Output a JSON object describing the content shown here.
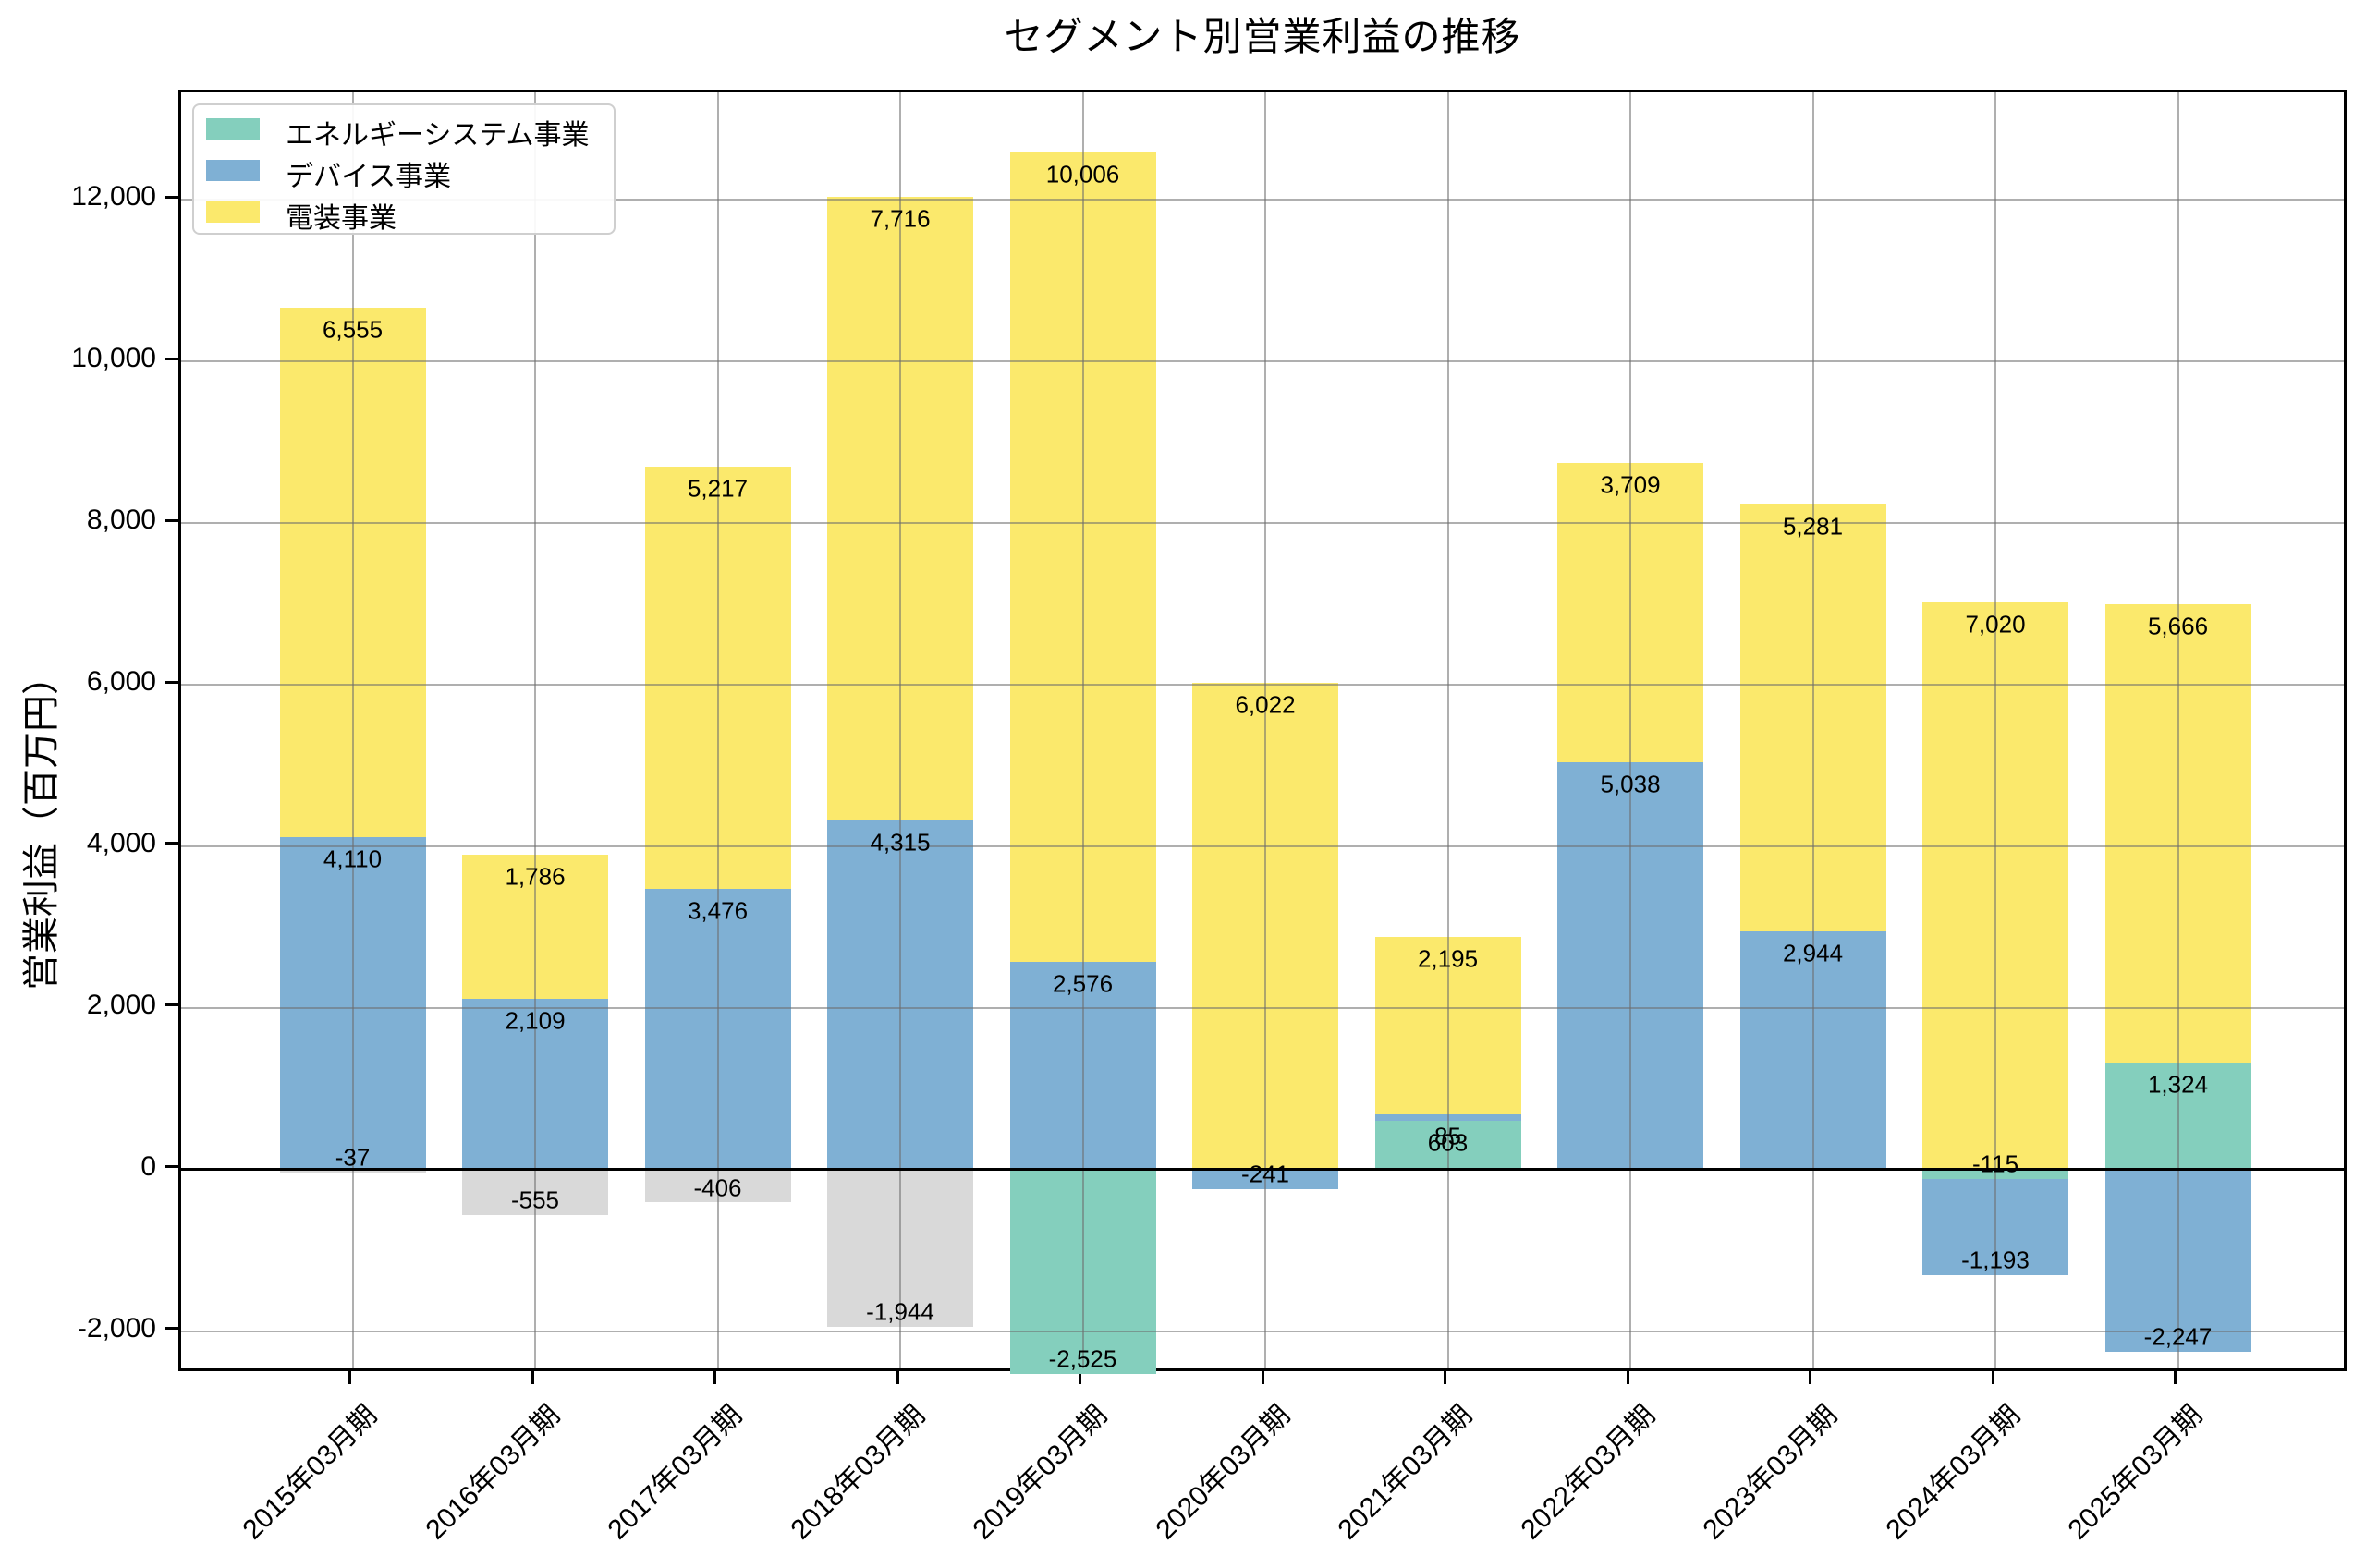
{
  "chart_data": {
    "type": "bar",
    "stacked": true,
    "title": "セグメント別営業利益の推移",
    "xlabel": "",
    "ylabel": "営業利益（百万円）",
    "categories": [
      "2015年03月期",
      "2016年03月期",
      "2017年03月期",
      "2018年03月期",
      "2019年03月期",
      "2020年03月期",
      "2021年03月期",
      "2022年03月期",
      "2023年03月期",
      "2024年03月期",
      "2025年03月期"
    ],
    "series": [
      {
        "name": "エネルギーシステム事業",
        "color": "#84cfbd",
        "in_legend": true,
        "values": [
          null,
          null,
          null,
          null,
          -2525,
          null,
          603,
          null,
          null,
          -115,
          1324
        ]
      },
      {
        "name": "デバイス事業",
        "color": "#7fb0d4",
        "in_legend": true,
        "values": [
          4110,
          2109,
          3476,
          4315,
          2576,
          -241,
          85,
          5038,
          2944,
          -1193,
          -2247
        ]
      },
      {
        "name": "電装事業",
        "color": "#fbe96c",
        "in_legend": true,
        "values": [
          6555,
          1786,
          5217,
          7716,
          10006,
          6022,
          2195,
          3709,
          5281,
          7020,
          5666
        ]
      },
      {
        "name": "",
        "color": "#d9d9d9",
        "in_legend": false,
        "values": [
          -37,
          -555,
          -406,
          -1944,
          null,
          null,
          null,
          null,
          null,
          null,
          null
        ]
      }
    ],
    "y_ticks": [
      -2000,
      0,
      2000,
      4000,
      6000,
      8000,
      10000,
      12000
    ],
    "ylim": [
      -2526,
      13326
    ],
    "grid": true,
    "zero_line": true,
    "legend_position": "upper left",
    "bar_value_labels": true,
    "colors": {
      "grid": "#6e6e6e",
      "spine": "#000000",
      "zero_line": "#000000",
      "legend_border": "#cfcfcf",
      "text": "#000000"
    }
  }
}
